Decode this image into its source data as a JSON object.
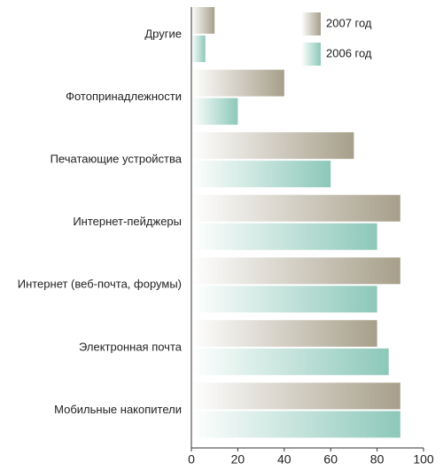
{
  "chart_data": {
    "type": "bar",
    "orientation": "horizontal",
    "categories": [
      "Другие",
      "Фотопринадлежности",
      "Печатающие устройства",
      "Интернет-пейджеры",
      "Интернет (веб-почта, форумы)",
      "Электронная почта",
      "Мобильные накопители"
    ],
    "series": [
      {
        "name": "2007 год",
        "color": "#a79f8a",
        "values": [
          10,
          40,
          70,
          90,
          90,
          80,
          90
        ]
      },
      {
        "name": "2006 год",
        "color": "#8cc8b9",
        "values": [
          6,
          20,
          60,
          80,
          80,
          85,
          90
        ]
      }
    ],
    "xlim": [
      0,
      100
    ],
    "xticks": [
      0,
      20,
      40,
      60,
      80,
      100
    ],
    "grid": false,
    "legend": "top-right"
  }
}
